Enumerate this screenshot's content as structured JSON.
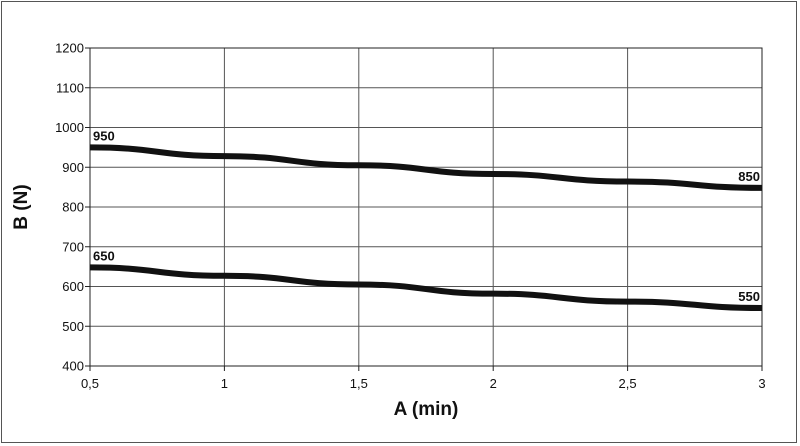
{
  "chart_data": {
    "type": "line",
    "title": "",
    "xlabel": "A (min)",
    "ylabel": "B (N)",
    "xlim": [
      0.5,
      3
    ],
    "ylim": [
      400,
      1200
    ],
    "x_ticks": [
      0.5,
      1,
      1.5,
      2,
      2.5,
      3
    ],
    "x_tick_labels": [
      "0,5",
      "1",
      "1,5",
      "2",
      "2,5",
      "3"
    ],
    "y_ticks": [
      400,
      500,
      600,
      700,
      800,
      900,
      1000,
      1100,
      1200
    ],
    "y_tick_labels": [
      "400",
      "500",
      "600",
      "700",
      "800",
      "900",
      "1000",
      "1100",
      "1200"
    ],
    "grid": true,
    "legend": "none",
    "line_color": "#111111",
    "series": [
      {
        "x": [
          0.5,
          1,
          1.5,
          2,
          2.5,
          3
        ],
        "y": [
          950,
          928,
          905,
          883,
          864,
          848
        ],
        "start_label": "950",
        "end_label": "850"
      },
      {
        "x": [
          0.5,
          1,
          1.5,
          2,
          2.5,
          3
        ],
        "y": [
          648,
          627,
          605,
          582,
          562,
          546
        ],
        "start_label": "650",
        "end_label": "550"
      }
    ]
  }
}
